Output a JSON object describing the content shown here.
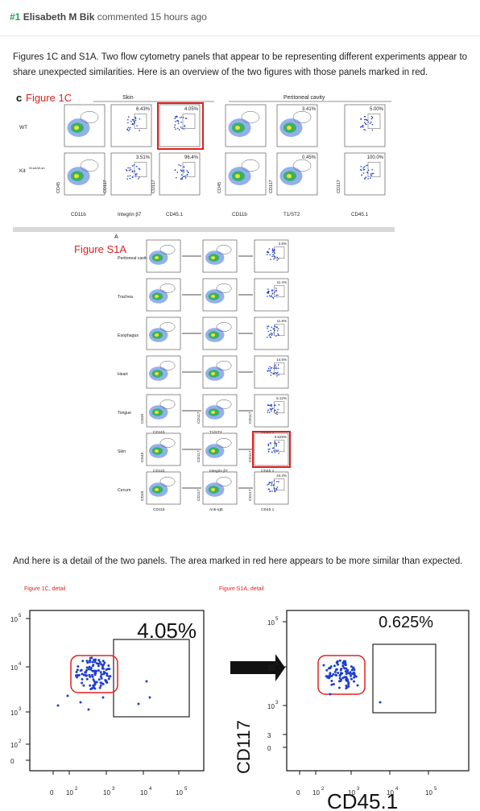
{
  "comment": {
    "number": "#1",
    "author": "Elisabeth M Bik",
    "action": "commented",
    "time": "15 hours ago"
  },
  "paragraph1": "Figures 1C and S1A. Two flow cytometry panels that appear to be representing different experiments appear to share unexpected similarities. Here is an overview of the two figures with those panels marked in red.",
  "paragraph2": "And here is a detail of the two panels. The area marked in red here appears to be more similar than expected.",
  "figure1c": {
    "label_c": "c",
    "title": "Figure 1C",
    "skin": "Skin",
    "peritoneal": "Peritoneal cavity",
    "rows": [
      "WT",
      "Kit"
    ],
    "kit_sup": "W-sh/W-sh",
    "pct_top": [
      "6.43%",
      "4.05%",
      "3.41%",
      "5.00%"
    ],
    "pct_bottom": [
      "3.51%",
      "96.4%",
      "0.45%",
      "100.0%"
    ],
    "y_labels": [
      "CD45",
      "CD117",
      "CD117",
      "CD45",
      "CD117",
      "CD117"
    ],
    "x_labels": [
      "CD11b",
      "Integrin β7",
      "CD45.1",
      "CD11b",
      "T1/ST2",
      "CD45.1"
    ]
  },
  "figures1a": {
    "label_a": "A",
    "title": "Figure S1A",
    "tissues": [
      "Peritoneal cavity",
      "Trachea",
      "Esophagus",
      "Heart",
      "Tongue",
      "Skin",
      "Cecum"
    ],
    "pct": [
      "2.5%",
      "11.4%",
      "11.6%",
      "14.5%",
      "5.12%",
      "0.625%",
      "44.2%"
    ],
    "axis_tongue": [
      "CD45",
      "CD11b",
      "CD117",
      "T1/ST2",
      "CD117",
      "CD45.1"
    ],
    "axis_skin": [
      "CD45",
      "CD11b",
      "CD117",
      "Integrin β7",
      "CD117",
      "CD45.1"
    ],
    "axis_cecum": [
      "CD45",
      "CD11b",
      "CD117",
      "Anti-IgE",
      "CD117",
      "CD45.1"
    ]
  },
  "detail_left": {
    "caption": "Figure 1C, detail",
    "pct": "4.05%",
    "yticks": [
      "10",
      "10",
      "10",
      "10",
      "0"
    ],
    "yexp": [
      "5",
      "4",
      "3",
      "2",
      ""
    ],
    "xticks": [
      "0",
      "10",
      "10",
      "10",
      "10"
    ],
    "xexp": [
      "",
      "2",
      "3",
      "4",
      "5"
    ]
  },
  "detail_right": {
    "caption": "Figure S1A, detail",
    "pct": "0.625%",
    "ylabel": "CD117",
    "xlabel": "CD45.1",
    "yticks": [
      "10",
      "10",
      "10",
      "3",
      "0"
    ],
    "yexp": [
      "5",
      "4",
      "3",
      "",
      ""
    ],
    "xticks": [
      "0",
      "10",
      "10",
      "10",
      "10"
    ],
    "xexp": [
      "",
      "2",
      "3",
      "4",
      "5"
    ]
  },
  "colors": {
    "red_mark": "#e02020",
    "blue_dots": "#1f3fd0",
    "green_text": "#2a9d59"
  }
}
